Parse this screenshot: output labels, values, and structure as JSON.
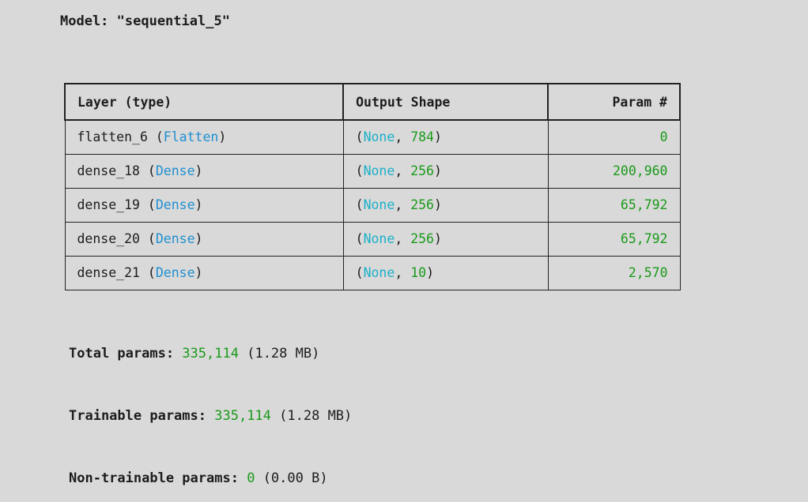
{
  "model": {
    "title": "Model: \"sequential_5\""
  },
  "table": {
    "headers": {
      "layer": "Layer (type)",
      "shape": "Output Shape",
      "param": "Param #"
    },
    "rows": [
      {
        "name": "flatten_6",
        "type": "Flatten",
        "none": "None",
        "dim": "784",
        "params": "0"
      },
      {
        "name": "dense_18",
        "type": "Dense",
        "none": "None",
        "dim": "256",
        "params": "200,960"
      },
      {
        "name": "dense_19",
        "type": "Dense",
        "none": "None",
        "dim": "256",
        "params": "65,792"
      },
      {
        "name": "dense_20",
        "type": "Dense",
        "none": "None",
        "dim": "256",
        "params": "65,792"
      },
      {
        "name": "dense_21",
        "type": "Dense",
        "none": "None",
        "dim": "10",
        "params": "2,570"
      }
    ]
  },
  "stats": {
    "total": {
      "label": "Total params:",
      "value": "335,114",
      "size": "(1.28 MB)"
    },
    "trainable": {
      "label": "Trainable params:",
      "value": "335,114",
      "size": "(1.28 MB)"
    },
    "non_trainable": {
      "label": "Non-trainable params:",
      "value": "0",
      "size": "(0.00 B)"
    }
  },
  "colors": {
    "background": "#d9d9d9",
    "type": "#1f8fd1",
    "none": "#1ab0c8",
    "number": "#1a9a1a"
  }
}
